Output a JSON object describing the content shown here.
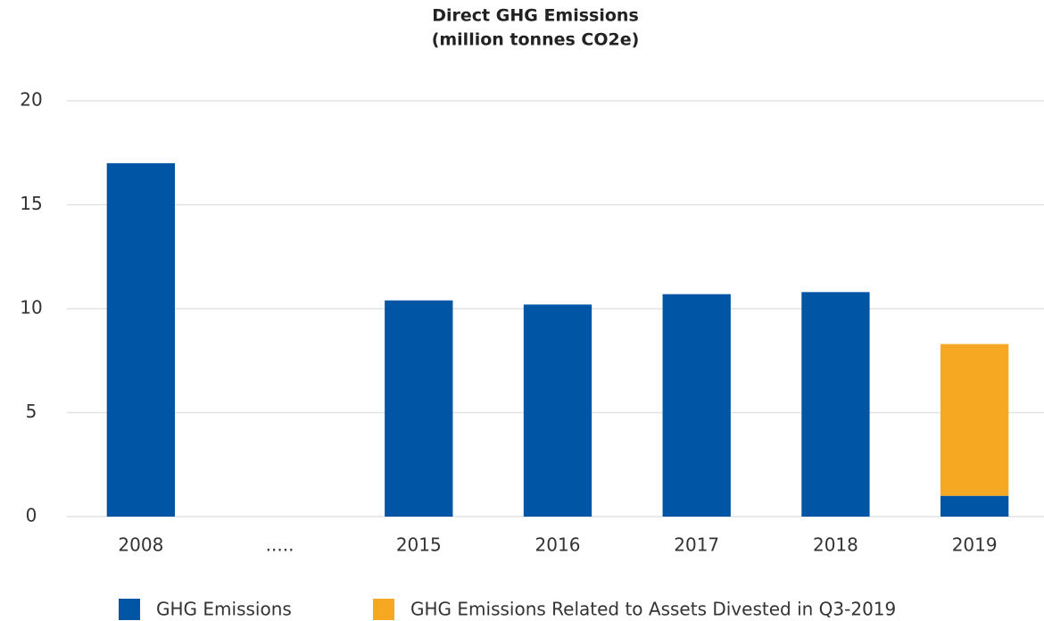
{
  "chart_data": {
    "type": "stacked_bar",
    "title": "Direct GHG Emissions",
    "subtitle": "(million tonnes CO2e)",
    "categories": [
      "2008",
      ".....",
      "2015",
      "2016",
      "2017",
      "2018",
      "2019"
    ],
    "series": [
      {
        "name": "GHG Emissions",
        "color": "#0055a5",
        "values": [
          17,
          null,
          10.4,
          10.2,
          10.7,
          10.8,
          1.0
        ]
      },
      {
        "name": "GHG Emissions Related to Assets Divested in Q3-2019",
        "color": "#f7a823",
        "values": [
          null,
          null,
          null,
          null,
          null,
          null,
          7.3
        ]
      }
    ],
    "ylim": [
      0,
      20
    ],
    "yticks": [
      0,
      5,
      10,
      15,
      20
    ],
    "grid": true,
    "legend": "bottom"
  }
}
